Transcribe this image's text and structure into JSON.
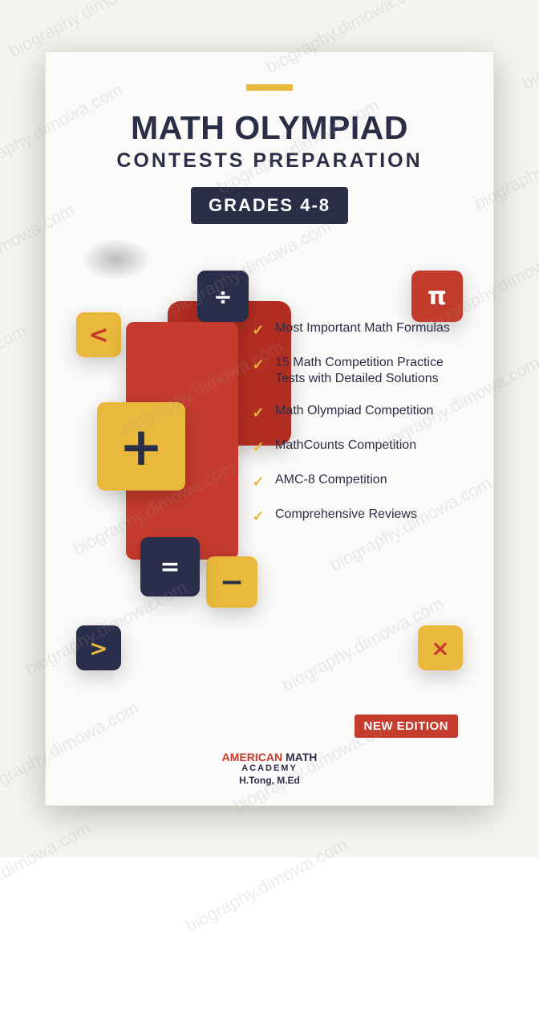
{
  "watermark_text": "biography.dimowa.com",
  "colors": {
    "navy": "#2b2e47",
    "red": "#c53b2d",
    "yellow": "#e8b93c",
    "bg": "#fbfaf8"
  },
  "accent_bar_color": "#e8b93c",
  "title_line1": "MATH OLYMPIAD",
  "title_line2": "CONTESTS PREPARATION",
  "grades_badge": "GRADES 4-8",
  "shapes": {
    "lt": "<",
    "div": "÷",
    "pi": "π",
    "plus": "+",
    "eq": "=",
    "minus": "−",
    "gt": ">",
    "x": "×"
  },
  "features": [
    "Most Important Math Formulas",
    "15 Math Competition Practice Tests with Detailed Solutions",
    "Math Olympiad Competition",
    "MathCounts Competition",
    "AMC-8 Competition",
    "Comprehensive Reviews"
  ],
  "check_glyph": "✓",
  "new_edition": "NEW EDITION",
  "publisher": {
    "brand_part1": "AMERICAN ",
    "brand_part2": "MATH",
    "sub": "ACADEMY",
    "author": "H.Tong, M.Ed"
  }
}
